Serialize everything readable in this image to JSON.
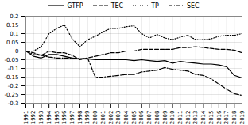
{
  "chart_data": {
    "type": "line",
    "x": [
      1991,
      1992,
      1993,
      1994,
      1995,
      1996,
      1997,
      1998,
      1999,
      2000,
      2001,
      2002,
      2003,
      2004,
      2005,
      2006,
      2007,
      2008,
      2009,
      2010,
      2011,
      2012,
      2013,
      2014,
      2015,
      2016,
      2017,
      2018,
      2019
    ],
    "series": [
      {
        "name": "GTFP",
        "color": "#000000",
        "line_style": "solid",
        "values": [
          0.0,
          -0.03,
          -0.04,
          -0.02,
          -0.02,
          -0.03,
          -0.04,
          -0.045,
          -0.045,
          -0.05,
          -0.05,
          -0.05,
          -0.05,
          -0.05,
          -0.055,
          -0.05,
          -0.055,
          -0.06,
          -0.055,
          -0.07,
          -0.06,
          -0.065,
          -0.07,
          -0.075,
          -0.075,
          -0.08,
          -0.09,
          -0.14,
          -0.155
        ]
      },
      {
        "name": "TEC",
        "color": "#000000",
        "line_style": "dashed",
        "values": [
          0.0,
          -0.01,
          -0.025,
          0.0,
          -0.01,
          -0.01,
          -0.025,
          -0.05,
          -0.04,
          -0.03,
          -0.02,
          -0.01,
          -0.01,
          0.0,
          0.0,
          0.01,
          0.01,
          0.01,
          0.01,
          0.01,
          0.02,
          0.02,
          0.025,
          0.02,
          0.015,
          0.01,
          0.01,
          0.005,
          -0.01
        ]
      },
      {
        "name": "TP",
        "color": "#000000",
        "line_style": "dotted",
        "values": [
          0.0,
          0.0,
          0.025,
          0.1,
          0.13,
          0.15,
          0.07,
          0.025,
          0.065,
          0.085,
          0.11,
          0.13,
          0.13,
          0.14,
          0.145,
          0.1,
          0.075,
          0.095,
          0.075,
          0.065,
          0.08,
          0.09,
          0.065,
          0.065,
          0.07,
          0.085,
          0.09,
          0.09,
          0.1
        ]
      },
      {
        "name": "SEC",
        "color": "#000000",
        "line_style": "dashdot",
        "values": [
          0.0,
          -0.02,
          -0.025,
          -0.035,
          -0.04,
          -0.04,
          -0.04,
          -0.045,
          -0.04,
          -0.15,
          -0.15,
          -0.145,
          -0.14,
          -0.135,
          -0.135,
          -0.12,
          -0.115,
          -0.11,
          -0.095,
          -0.105,
          -0.11,
          -0.115,
          -0.135,
          -0.14,
          -0.16,
          -0.19,
          -0.22,
          -0.245,
          -0.255
        ]
      }
    ],
    "xlim": [
      1991,
      2019
    ],
    "xticks": [
      1991,
      1992,
      1993,
      1994,
      1995,
      1996,
      1997,
      1998,
      1999,
      2000,
      2001,
      2002,
      2003,
      2004,
      2005,
      2006,
      2007,
      2008,
      2009,
      2010,
      2011,
      2012,
      2013,
      2014,
      2015,
      2016,
      2017,
      2018,
      2019
    ],
    "ylim": [
      -0.3,
      0.2
    ],
    "yticks": [
      -0.3,
      -0.25,
      -0.2,
      -0.15,
      -0.1,
      -0.05,
      0,
      0.05,
      0.1,
      0.15,
      0.2
    ],
    "grid": true,
    "legend": "top"
  }
}
